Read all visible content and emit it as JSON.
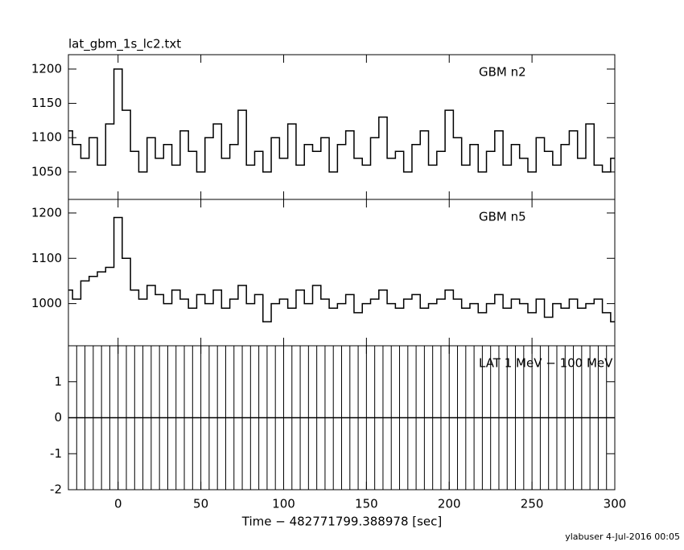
{
  "chart_data": {
    "type": "line",
    "title": "lat_gbm_1s_lc2.txt",
    "x_label": "Time − 482771799.388978 [sec]",
    "footer": "ylabuser  4-Jul-2016 00:05",
    "x": [
      -30,
      -25,
      -20,
      -15,
      -10,
      -5,
      0,
      5,
      10,
      15,
      20,
      25,
      30,
      35,
      40,
      45,
      50,
      55,
      60,
      65,
      70,
      75,
      80,
      85,
      90,
      95,
      100,
      105,
      110,
      115,
      120,
      125,
      130,
      135,
      140,
      145,
      150,
      155,
      160,
      165,
      170,
      175,
      180,
      185,
      190,
      195,
      200,
      205,
      210,
      215,
      220,
      225,
      230,
      235,
      240,
      245,
      250,
      255,
      260,
      265,
      270,
      275,
      280,
      285,
      290,
      295,
      300
    ],
    "xlim": [
      -30,
      300
    ],
    "xticks": [
      0,
      50,
      100,
      150,
      200,
      250,
      300
    ],
    "panels": [
      {
        "name": "GBM n2",
        "color": "#000000",
        "ylim": [
          1010,
          1221
        ],
        "yticks": [
          1050,
          1100,
          1150,
          1200
        ],
        "values": [
          1110,
          1090,
          1070,
          1100,
          1060,
          1120,
          1200,
          1140,
          1080,
          1050,
          1100,
          1070,
          1090,
          1060,
          1110,
          1080,
          1050,
          1100,
          1120,
          1070,
          1090,
          1140,
          1060,
          1080,
          1050,
          1100,
          1070,
          1120,
          1060,
          1090,
          1080,
          1100,
          1050,
          1090,
          1110,
          1070,
          1060,
          1100,
          1130,
          1070,
          1080,
          1050,
          1090,
          1110,
          1060,
          1080,
          1140,
          1100,
          1060,
          1090,
          1050,
          1080,
          1110,
          1060,
          1090,
          1070,
          1050,
          1100,
          1080,
          1060,
          1090,
          1110,
          1070,
          1120,
          1060,
          1050,
          1070
        ]
      },
      {
        "name": "GBM n5",
        "color": "#000000",
        "ylim": [
          907,
          1230
        ],
        "yticks": [
          1000,
          1100,
          1200
        ],
        "values": [
          1030,
          1010,
          1050,
          1060,
          1070,
          1080,
          1190,
          1100,
          1030,
          1010,
          1040,
          1020,
          1000,
          1030,
          1010,
          990,
          1020,
          1000,
          1030,
          990,
          1010,
          1040,
          1000,
          1020,
          960,
          1000,
          1010,
          990,
          1030,
          1000,
          1040,
          1010,
          990,
          1000,
          1020,
          980,
          1000,
          1010,
          1030,
          1000,
          990,
          1010,
          1020,
          990,
          1000,
          1010,
          1030,
          1010,
          990,
          1000,
          980,
          1000,
          1020,
          990,
          1010,
          1000,
          980,
          1010,
          970,
          1000,
          990,
          1010,
          990,
          1000,
          1010,
          980,
          960
        ]
      },
      {
        "name": "LAT 1 MeV − 100 MeV",
        "color": "#000000",
        "ylim": [
          -2,
          2
        ],
        "yticks": [
          -2,
          -1,
          0,
          1
        ],
        "values": [
          0,
          0,
          0,
          0,
          0,
          0,
          0,
          0,
          0,
          0,
          0,
          0,
          0,
          0,
          0,
          0,
          0,
          0,
          0,
          0,
          0,
          0,
          0,
          0,
          0,
          0,
          0,
          0,
          0,
          0,
          0,
          0,
          0,
          0,
          0,
          0,
          0,
          0,
          0,
          0,
          0,
          0,
          0,
          0,
          0,
          0,
          0,
          0,
          0,
          0,
          0,
          0,
          0,
          0,
          0,
          0,
          0,
          0,
          0,
          0,
          0,
          0,
          0,
          0,
          0,
          0,
          0
        ],
        "errors": [
          2,
          2,
          2,
          2,
          2,
          2,
          2,
          2,
          2,
          2,
          2,
          2,
          2,
          2,
          2,
          2,
          2,
          2,
          2,
          2,
          2,
          2,
          2,
          2,
          2,
          2,
          2,
          2,
          2,
          2,
          2,
          2,
          2,
          2,
          2,
          2,
          2,
          2,
          2,
          2,
          2,
          2,
          2,
          2,
          2,
          2,
          2,
          2,
          2,
          2,
          2,
          2,
          2,
          2,
          2,
          2,
          2,
          2,
          2,
          2,
          2,
          2,
          2,
          2,
          2,
          2,
          2
        ]
      }
    ]
  }
}
